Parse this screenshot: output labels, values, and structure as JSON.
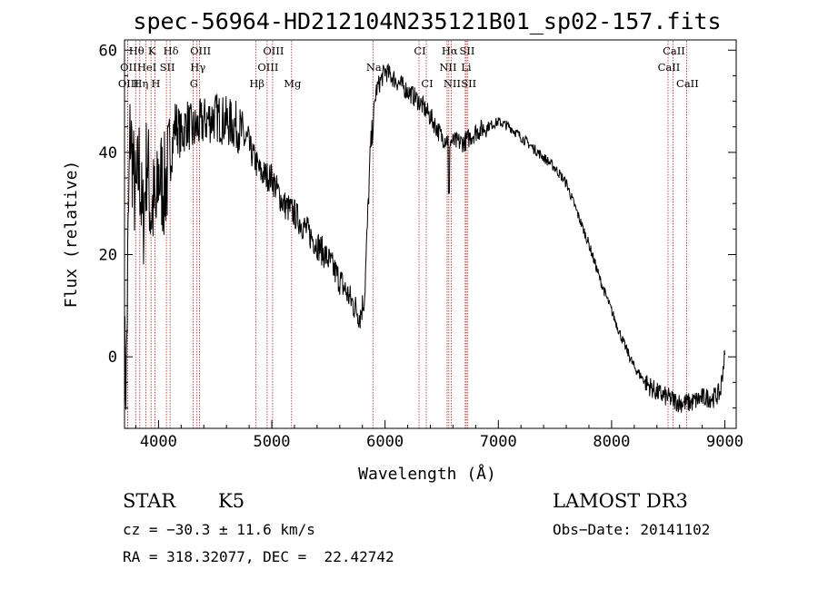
{
  "chart_data": {
    "type": "line",
    "title": "spec-56964-HD212104N235121B01_sp02-157.fits",
    "xlabel": "Wavelength (Å)",
    "ylabel": "Flux (relative)",
    "xlim": [
      3700,
      9100
    ],
    "ylim": [
      -14,
      62
    ],
    "xticks": [
      4000,
      5000,
      6000,
      7000,
      8000,
      9000
    ],
    "yticks": [
      0,
      20,
      40,
      60
    ],
    "series": [
      {
        "name": "flux",
        "anchors": [
          [
            3700,
            0
          ],
          [
            3715,
            -5
          ],
          [
            3730,
            20
          ],
          [
            3750,
            45
          ],
          [
            3780,
            35
          ],
          [
            3800,
            30
          ],
          [
            3830,
            38
          ],
          [
            3860,
            25
          ],
          [
            3880,
            32
          ],
          [
            3900,
            40
          ],
          [
            3930,
            28
          ],
          [
            3960,
            30
          ],
          [
            3980,
            27
          ],
          [
            4000,
            36
          ],
          [
            4050,
            33
          ],
          [
            4100,
            38
          ],
          [
            4150,
            46
          ],
          [
            4200,
            43
          ],
          [
            4250,
            46
          ],
          [
            4300,
            44
          ],
          [
            4400,
            46
          ],
          [
            4500,
            47
          ],
          [
            4600,
            46
          ],
          [
            4700,
            45
          ],
          [
            4800,
            41
          ],
          [
            4900,
            36
          ],
          [
            5000,
            35
          ],
          [
            5100,
            30
          ],
          [
            5200,
            28
          ],
          [
            5300,
            25
          ],
          [
            5400,
            22
          ],
          [
            5500,
            19
          ],
          [
            5600,
            15
          ],
          [
            5700,
            11
          ],
          [
            5780,
            8
          ],
          [
            5820,
            12
          ],
          [
            5870,
            40
          ],
          [
            5920,
            52
          ],
          [
            6000,
            56
          ],
          [
            6100,
            54
          ],
          [
            6200,
            52
          ],
          [
            6300,
            50
          ],
          [
            6400,
            47
          ],
          [
            6500,
            43
          ],
          [
            6600,
            42
          ],
          [
            6700,
            42
          ],
          [
            6800,
            44
          ],
          [
            6900,
            45
          ],
          [
            7000,
            46
          ],
          [
            7100,
            45
          ],
          [
            7200,
            43
          ],
          [
            7300,
            41
          ],
          [
            7400,
            39
          ],
          [
            7500,
            37
          ],
          [
            7600,
            34
          ],
          [
            7700,
            28
          ],
          [
            7800,
            22
          ],
          [
            7900,
            15
          ],
          [
            8000,
            9
          ],
          [
            8100,
            3
          ],
          [
            8200,
            -2
          ],
          [
            8300,
            -5
          ],
          [
            8400,
            -7
          ],
          [
            8500,
            -8
          ],
          [
            8600,
            -9
          ],
          [
            8700,
            -9
          ],
          [
            8800,
            -8
          ],
          [
            8900,
            -8
          ],
          [
            8960,
            -7
          ],
          [
            8990,
            -1
          ],
          [
            9000,
            0
          ]
        ],
        "dips": [
          [
            6563,
            32
          ]
        ]
      }
    ],
    "spectral_lines": [
      {
        "label": "Hθ",
        "x": 3798,
        "row": 0
      },
      {
        "label": "K",
        "x": 3934,
        "row": 0
      },
      {
        "label": "Hδ",
        "x": 4102,
        "row": 0
      },
      {
        "label": "OIII",
        "x": 4363,
        "row": 0
      },
      {
        "label": "OIII",
        "x": 5007,
        "row": 0
      },
      {
        "label": "CI",
        "x": 6300,
        "row": 0
      },
      {
        "label": "Hα",
        "x": 6563,
        "row": 0
      },
      {
        "label": "SII",
        "x": 6717,
        "row": 0
      },
      {
        "label": "CaII",
        "x": 8542,
        "row": 0
      },
      {
        "label": "OII",
        "x": 3727,
        "row": 1
      },
      {
        "label": "HeI",
        "x": 3889,
        "row": 1
      },
      {
        "label": "SII",
        "x": 4070,
        "row": 1
      },
      {
        "label": "Hγ",
        "x": 4340,
        "row": 1
      },
      {
        "label": "OIII",
        "x": 4959,
        "row": 1
      },
      {
        "label": "Na",
        "x": 5893,
        "row": 1
      },
      {
        "label": "NII",
        "x": 6548,
        "row": 1
      },
      {
        "label": "Li",
        "x": 6708,
        "row": 1
      },
      {
        "label": "CaII",
        "x": 8498,
        "row": 1
      },
      {
        "label": "OIII",
        "x": 3727,
        "row": 2
      },
      {
        "label": "Hη",
        "x": 3835,
        "row": 2
      },
      {
        "label": "H",
        "x": 3968,
        "row": 2
      },
      {
        "label": "G",
        "x": 4305,
        "row": 2
      },
      {
        "label": "Hβ",
        "x": 4861,
        "row": 2
      },
      {
        "label": "Mg",
        "x": 5175,
        "row": 2
      },
      {
        "label": "CI",
        "x": 6364,
        "row": 2
      },
      {
        "label": "NII",
        "x": 6584,
        "row": 2
      },
      {
        "label": "SII",
        "x": 6731,
        "row": 2
      },
      {
        "label": "CaII",
        "x": 8662,
        "row": 2
      }
    ]
  },
  "info": {
    "object_class": "STAR",
    "subclass": "K5",
    "survey": "LAMOST DR3",
    "cz": "cz = −30.3 ± 11.6 km/s",
    "obs_date": "Obs−Date: 20141102",
    "coords": "RA = 318.32077, DEC =  22.42742"
  }
}
